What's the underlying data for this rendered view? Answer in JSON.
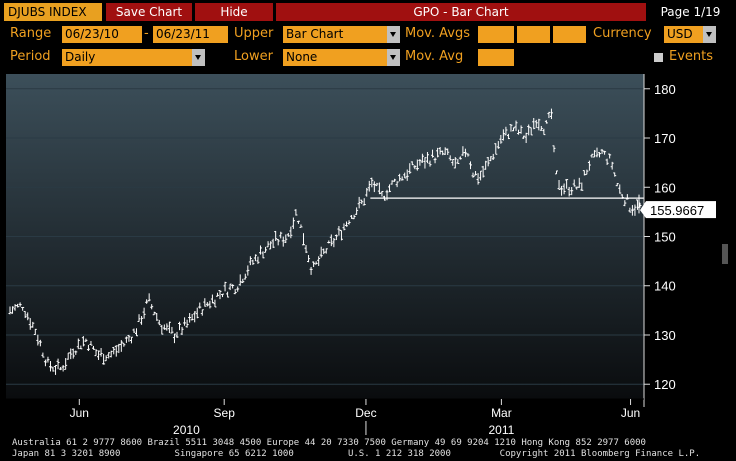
{
  "toolbar": {
    "ticker": "DJUBS INDEX",
    "save_label": "Save Chart",
    "hide_label": "Hide",
    "title": "GPO - Bar Chart",
    "page": "Page 1/19"
  },
  "params": {
    "range_label": "Range",
    "range_start": "06/23/10",
    "range_sep": "-",
    "range_end": "06/23/11",
    "upper_label": "Upper",
    "upper_value": "Bar Chart",
    "mov_avgs_label": "Mov. Avgs",
    "currency_label": "Currency",
    "currency_value": "USD",
    "period_label": "Period",
    "period_value": "Daily",
    "lower_label": "Lower",
    "lower_value": "None",
    "mov_avg_label": "Mov. Avg",
    "events_label": "Events"
  },
  "chart_data": {
    "type": "bar",
    "ylim": [
      117,
      183
    ],
    "yticks": [
      120,
      130,
      140,
      150,
      160,
      170,
      180
    ],
    "xticks": [
      {
        "label": "Jun",
        "pos": 0.11
      },
      {
        "label": "Sep",
        "pos": 0.34
      },
      {
        "label": "Dec",
        "pos": 0.565
      },
      {
        "label": "Mar",
        "pos": 0.78
      },
      {
        "label": "Jun",
        "pos": 0.985
      }
    ],
    "year_labels": [
      {
        "label": "2010",
        "pos": 0.28
      },
      {
        "label": "2011",
        "pos": 0.78
      }
    ],
    "last_value": "155.9667",
    "reference_line": 157.8,
    "series_anchor": [
      [
        0.0,
        135
      ],
      [
        0.02,
        136
      ],
      [
        0.04,
        131
      ],
      [
        0.06,
        124
      ],
      [
        0.08,
        123
      ],
      [
        0.1,
        127
      ],
      [
        0.12,
        129
      ],
      [
        0.14,
        126
      ],
      [
        0.16,
        126
      ],
      [
        0.18,
        128
      ],
      [
        0.2,
        131
      ],
      [
        0.22,
        137
      ],
      [
        0.24,
        132
      ],
      [
        0.26,
        130
      ],
      [
        0.28,
        132
      ],
      [
        0.3,
        135
      ],
      [
        0.32,
        137
      ],
      [
        0.34,
        139
      ],
      [
        0.36,
        140
      ],
      [
        0.38,
        144
      ],
      [
        0.4,
        147
      ],
      [
        0.42,
        149
      ],
      [
        0.44,
        150
      ],
      [
        0.455,
        155
      ],
      [
        0.47,
        148
      ],
      [
        0.48,
        143
      ],
      [
        0.5,
        147
      ],
      [
        0.52,
        150
      ],
      [
        0.54,
        154
      ],
      [
        0.56,
        157
      ],
      [
        0.575,
        161
      ],
      [
        0.59,
        158
      ],
      [
        0.61,
        161
      ],
      [
        0.63,
        163
      ],
      [
        0.65,
        165
      ],
      [
        0.67,
        166
      ],
      [
        0.69,
        167
      ],
      [
        0.71,
        164
      ],
      [
        0.725,
        168
      ],
      [
        0.735,
        163
      ],
      [
        0.745,
        162
      ],
      [
        0.76,
        165
      ],
      [
        0.78,
        170
      ],
      [
        0.8,
        172
      ],
      [
        0.82,
        170
      ],
      [
        0.835,
        174
      ],
      [
        0.85,
        172
      ],
      [
        0.86,
        175
      ],
      [
        0.865,
        163
      ],
      [
        0.875,
        160
      ],
      [
        0.89,
        160
      ],
      [
        0.905,
        160
      ],
      [
        0.92,
        165
      ],
      [
        0.94,
        167
      ],
      [
        0.955,
        165
      ],
      [
        0.965,
        160
      ],
      [
        0.975,
        158
      ],
      [
        0.985,
        156
      ]
    ]
  },
  "footer": {
    "line1": "Australia 61 2 9777 8600 Brazil 5511 3048 4500 Europe 44 20 7330 7500 Germany 49 69 9204 1210 Hong Kong 852 2977 6000",
    "line2": "Japan 81 3 3201 8900          Singapore 65 6212 1000          U.S. 1 212 318 2000         Copyright 2011 Bloomberg Finance L.P."
  }
}
